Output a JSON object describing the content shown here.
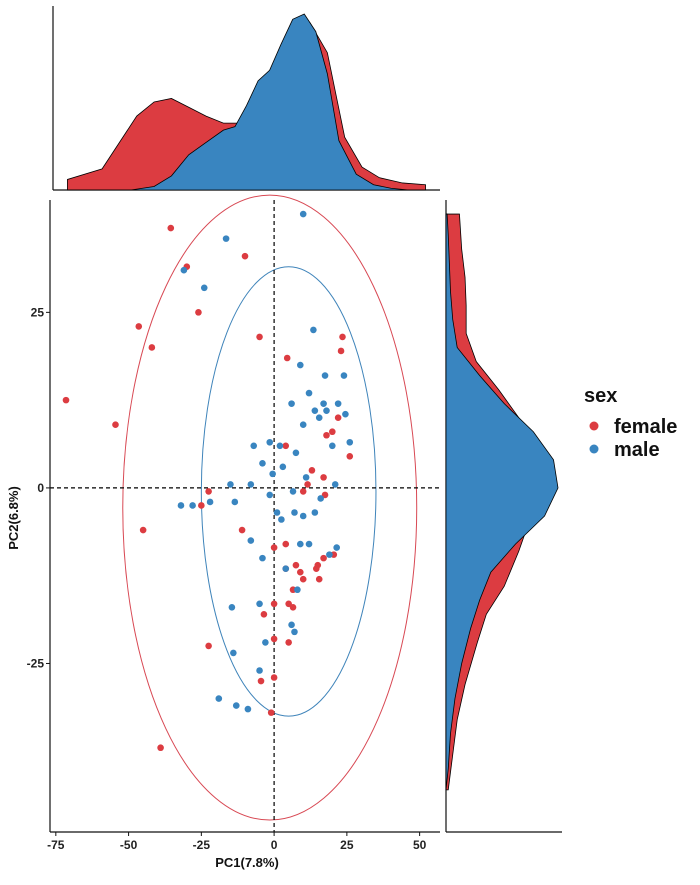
{
  "colors": {
    "female": "#dc3c41",
    "male": "#3985c0",
    "ellipse_female": "#d84853",
    "ellipse_male": "#3f84ba",
    "axis": "#111111"
  },
  "legend": {
    "title": "sex",
    "items": [
      {
        "key": "female",
        "label": "female",
        "color": "#dc3c41"
      },
      {
        "key": "male",
        "label": "male",
        "color": "#3985c0"
      }
    ],
    "placement": "right"
  },
  "chart_data": {
    "type": "scatter",
    "xlabel": "PC1(7.8%)",
    "ylabel": "PC2(6.8%)",
    "xlim": [
      -77,
      57
    ],
    "ylim": [
      -49,
      41
    ],
    "xticks": [
      -75,
      -50,
      -25,
      0,
      25,
      50
    ],
    "yticks": [
      -25,
      0,
      25
    ],
    "xtick_labels": [
      "-75",
      "-50",
      "-25",
      "0",
      "25",
      "50"
    ],
    "ytick_labels": [
      "-25",
      "0",
      "25"
    ],
    "reference_lines": {
      "x": 0,
      "y": 0,
      "style": "dashed"
    },
    "grid": false,
    "ellipses": [
      {
        "group": "female",
        "cx": -1.5,
        "cy": -2.8,
        "rx": 50.5,
        "ry": 44.5
      },
      {
        "group": "male",
        "cx": 5,
        "cy": -0.5,
        "rx": 30,
        "ry": 32
      }
    ],
    "series": [
      {
        "name": "female",
        "points": [
          [
            -71.5,
            12.5
          ],
          [
            -54.5,
            9
          ],
          [
            -46.5,
            23
          ],
          [
            -42,
            20
          ],
          [
            -35.5,
            37
          ],
          [
            -30,
            31.5
          ],
          [
            -26,
            25
          ],
          [
            -25,
            -2.5
          ],
          [
            -22.5,
            -22.5
          ],
          [
            -22.5,
            -0.5
          ],
          [
            -45,
            -6
          ],
          [
            -39,
            -37
          ],
          [
            -11,
            -6
          ],
          [
            -10,
            33
          ],
          [
            -5,
            21.5
          ],
          [
            -4.5,
            -27.5
          ],
          [
            -3.5,
            -18
          ],
          [
            -1,
            -32
          ],
          [
            0,
            -16.5
          ],
          [
            0,
            -27
          ],
          [
            0,
            -21.5
          ],
          [
            0,
            -8.5
          ],
          [
            4,
            -11.5
          ],
          [
            4,
            6
          ],
          [
            4.5,
            18.5
          ],
          [
            4,
            -8
          ],
          [
            5,
            -16.5
          ],
          [
            5,
            -22
          ],
          [
            6.5,
            -17
          ],
          [
            6.5,
            -14.5
          ],
          [
            7.5,
            -11
          ],
          [
            9,
            -12
          ],
          [
            10,
            -0.5
          ],
          [
            10,
            -13
          ],
          [
            11.5,
            0.5
          ],
          [
            13,
            2.5
          ],
          [
            14.5,
            -11.5
          ],
          [
            15.5,
            -13
          ],
          [
            15,
            -11
          ],
          [
            17,
            1.5
          ],
          [
            17,
            -10
          ],
          [
            17.5,
            -1
          ],
          [
            18,
            7.5
          ],
          [
            20,
            8
          ],
          [
            20.5,
            -9.5
          ],
          [
            22,
            10
          ],
          [
            23,
            19.5
          ],
          [
            23.5,
            21.5
          ],
          [
            26,
            4.5
          ]
        ]
      },
      {
        "name": "male",
        "points": [
          [
            -32,
            -2.5
          ],
          [
            -31,
            31
          ],
          [
            -28,
            -2.5
          ],
          [
            -24,
            28.5
          ],
          [
            -22,
            -2
          ],
          [
            -19,
            -30
          ],
          [
            -16.5,
            35.5
          ],
          [
            -15,
            0.5
          ],
          [
            -14.5,
            -17
          ],
          [
            -14,
            -23.5
          ],
          [
            -13,
            -31
          ],
          [
            -13.5,
            -2
          ],
          [
            -9,
            -31.5
          ],
          [
            -8,
            -7.5
          ],
          [
            -8,
            0.5
          ],
          [
            -7,
            6
          ],
          [
            -5,
            -26
          ],
          [
            -5,
            -16.5
          ],
          [
            -4,
            -10
          ],
          [
            -4,
            3.5
          ],
          [
            -3,
            -22
          ],
          [
            -1.5,
            6.5
          ],
          [
            -1.5,
            -1
          ],
          [
            -0.5,
            2
          ],
          [
            1,
            -3.5
          ],
          [
            2,
            6
          ],
          [
            2.5,
            -4.5
          ],
          [
            3,
            3
          ],
          [
            4,
            -11.5
          ],
          [
            6,
            -19.5
          ],
          [
            6,
            12
          ],
          [
            6.5,
            -0.5
          ],
          [
            7,
            -3.5
          ],
          [
            7,
            -20.5
          ],
          [
            7.5,
            5
          ],
          [
            8,
            -14.5
          ],
          [
            9,
            -8
          ],
          [
            9,
            17.5
          ],
          [
            10,
            39
          ],
          [
            10,
            9
          ],
          [
            10,
            -4
          ],
          [
            11,
            1.5
          ],
          [
            12,
            -8
          ],
          [
            12,
            13.5
          ],
          [
            13.5,
            22.5
          ],
          [
            14,
            -3.5
          ],
          [
            14,
            11
          ],
          [
            15.5,
            10
          ],
          [
            16,
            -1.5
          ],
          [
            17,
            12
          ],
          [
            17.5,
            16
          ],
          [
            18,
            11
          ],
          [
            19,
            -9.5
          ],
          [
            20,
            6
          ],
          [
            21,
            0.5
          ],
          [
            21.5,
            -8.5
          ],
          [
            22,
            12
          ],
          [
            24,
            16
          ],
          [
            24.5,
            10.5
          ],
          [
            26,
            6.5
          ]
        ]
      }
    ],
    "marginals": {
      "type": "density",
      "top": {
        "female": [
          [
            -72,
            0.06
          ],
          [
            -60,
            0.12
          ],
          [
            -48,
            0.42
          ],
          [
            -42,
            0.5
          ],
          [
            -36,
            0.52
          ],
          [
            -30,
            0.47
          ],
          [
            -24,
            0.42
          ],
          [
            -18,
            0.38
          ],
          [
            -12,
            0.38
          ],
          [
            -6,
            0.47
          ],
          [
            0,
            0.62
          ],
          [
            6,
            0.82
          ],
          [
            12,
            0.95
          ],
          [
            18,
            0.78
          ],
          [
            24,
            0.3
          ],
          [
            30,
            0.13
          ],
          [
            36,
            0.07
          ],
          [
            44,
            0.04
          ],
          [
            52,
            0.03
          ]
        ],
        "male": [
          [
            -72,
            0.0
          ],
          [
            -60,
            0.0
          ],
          [
            -50,
            0.0
          ],
          [
            -42,
            0.02
          ],
          [
            -36,
            0.08
          ],
          [
            -30,
            0.2
          ],
          [
            -24,
            0.27
          ],
          [
            -18,
            0.34
          ],
          [
            -14,
            0.36
          ],
          [
            -10,
            0.48
          ],
          [
            -6,
            0.62
          ],
          [
            -2,
            0.68
          ],
          [
            2,
            0.83
          ],
          [
            6,
            0.97
          ],
          [
            10,
            1.0
          ],
          [
            14,
            0.9
          ],
          [
            18,
            0.66
          ],
          [
            22,
            0.28
          ],
          [
            28,
            0.09
          ],
          [
            34,
            0.03
          ],
          [
            40,
            0.01
          ],
          [
            46,
            0.0
          ],
          [
            52,
            0.0
          ]
        ]
      },
      "right": {
        "female": [
          [
            -43,
            0.02
          ],
          [
            -38,
            0.06
          ],
          [
            -33,
            0.1
          ],
          [
            -28,
            0.17
          ],
          [
            -22,
            0.28
          ],
          [
            -18,
            0.36
          ],
          [
            -14,
            0.52
          ],
          [
            -9,
            0.65
          ],
          [
            -4,
            0.76
          ],
          [
            0,
            0.83
          ],
          [
            5,
            0.86
          ],
          [
            10,
            0.65
          ],
          [
            14,
            0.47
          ],
          [
            18,
            0.27
          ],
          [
            22,
            0.18
          ],
          [
            26,
            0.18
          ],
          [
            30,
            0.17
          ],
          [
            34,
            0.14
          ],
          [
            39,
            0.12
          ]
        ],
        "male": [
          [
            -43,
            0.0
          ],
          [
            -40,
            0.02
          ],
          [
            -35,
            0.04
          ],
          [
            -30,
            0.08
          ],
          [
            -25,
            0.14
          ],
          [
            -20,
            0.22
          ],
          [
            -16,
            0.3
          ],
          [
            -12,
            0.4
          ],
          [
            -8,
            0.62
          ],
          [
            -4,
            0.88
          ],
          [
            0,
            1.0
          ],
          [
            4,
            0.96
          ],
          [
            8,
            0.78
          ],
          [
            12,
            0.52
          ],
          [
            16,
            0.3
          ],
          [
            20,
            0.1
          ],
          [
            24,
            0.06
          ],
          [
            28,
            0.04
          ],
          [
            32,
            0.03
          ],
          [
            36,
            0.02
          ],
          [
            39,
            0.01
          ]
        ]
      }
    }
  }
}
